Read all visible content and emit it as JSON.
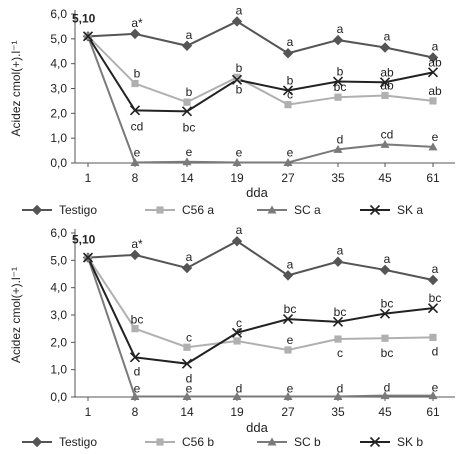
{
  "chart_data": [
    {
      "type": "line",
      "ylabel": "Acidez cmol(+).l⁻¹",
      "xlabel": "dda",
      "categories": [
        "1",
        "8",
        "14",
        "19",
        "27",
        "35",
        "45",
        "61"
      ],
      "ylim": [
        0,
        6
      ],
      "yticks": [
        "0,0",
        "1,0",
        "2,0",
        "3,0",
        "4,0",
        "5,0",
        "6,0"
      ],
      "start_label": "5,10",
      "grid": false,
      "legend": "bottom",
      "series": [
        {
          "name": "Testigo",
          "color": "#555555",
          "marker": "diamond",
          "values": [
            5.1,
            5.2,
            4.72,
            5.7,
            4.42,
            4.95,
            4.65,
            4.25
          ],
          "labels": [
            "",
            "a*",
            "a",
            "a",
            "a",
            "a",
            "a",
            "a"
          ]
        },
        {
          "name": "C56 a",
          "color": "#b0b0b0",
          "marker": "square",
          "values": [
            5.1,
            3.2,
            2.45,
            3.45,
            2.35,
            2.65,
            2.72,
            2.5
          ],
          "labels": [
            "",
            "b",
            "b",
            "b",
            "c",
            "bc",
            "ab",
            "ab"
          ]
        },
        {
          "name": "SC a",
          "color": "#7a7a7a",
          "marker": "triangle",
          "values": [
            5.1,
            0.02,
            0.05,
            0.02,
            0.02,
            0.55,
            0.75,
            0.65
          ],
          "labels": [
            "",
            "e",
            "e",
            "e",
            "e",
            "d",
            "cd",
            "e"
          ]
        },
        {
          "name": "SK a",
          "color": "#222222",
          "marker": "x",
          "values": [
            5.1,
            2.12,
            2.08,
            3.35,
            2.92,
            3.28,
            3.25,
            3.65
          ],
          "labels": [
            "",
            "cd",
            "bc",
            "b",
            "b",
            "b",
            "ab",
            "ab"
          ]
        }
      ]
    },
    {
      "type": "line",
      "ylabel": "Acidez cmol(+).l⁻¹",
      "xlabel": "dda",
      "categories": [
        "1",
        "8",
        "14",
        "19",
        "27",
        "35",
        "45",
        "61"
      ],
      "ylim": [
        0,
        6
      ],
      "yticks": [
        "0,0",
        "1,0",
        "2,0",
        "3,0",
        "4,0",
        "5,0",
        "6,0"
      ],
      "start_label": "5,10",
      "grid": false,
      "legend": "bottom",
      "series": [
        {
          "name": "Testigo",
          "color": "#555555",
          "marker": "diamond",
          "values": [
            5.1,
            5.2,
            4.72,
            5.7,
            4.45,
            4.95,
            4.65,
            4.28
          ],
          "labels": [
            "",
            "a*",
            "a",
            "a",
            "a",
            "a",
            "a",
            "a"
          ]
        },
        {
          "name": "C56 b",
          "color": "#b0b0b0",
          "marker": "square",
          "values": [
            5.1,
            2.5,
            1.82,
            2.05,
            1.72,
            2.12,
            2.15,
            2.18
          ],
          "labels": [
            "",
            "bc",
            "c",
            "c",
            "e",
            "c",
            "bc",
            "d"
          ]
        },
        {
          "name": "SC b",
          "color": "#7a7a7a",
          "marker": "triangle",
          "values": [
            5.1,
            0.02,
            0.02,
            0.02,
            0.02,
            0.02,
            0.05,
            0.05
          ],
          "labels": [
            "",
            "e",
            "e",
            "d",
            "e",
            "d",
            "d",
            "e"
          ]
        },
        {
          "name": "SK b",
          "color": "#222222",
          "marker": "x",
          "values": [
            5.1,
            1.45,
            1.22,
            2.35,
            2.85,
            2.75,
            3.05,
            3.25
          ],
          "labels": [
            "",
            "d",
            "d",
            "c",
            "bc",
            "bc",
            "bc",
            "bc"
          ]
        }
      ]
    }
  ]
}
